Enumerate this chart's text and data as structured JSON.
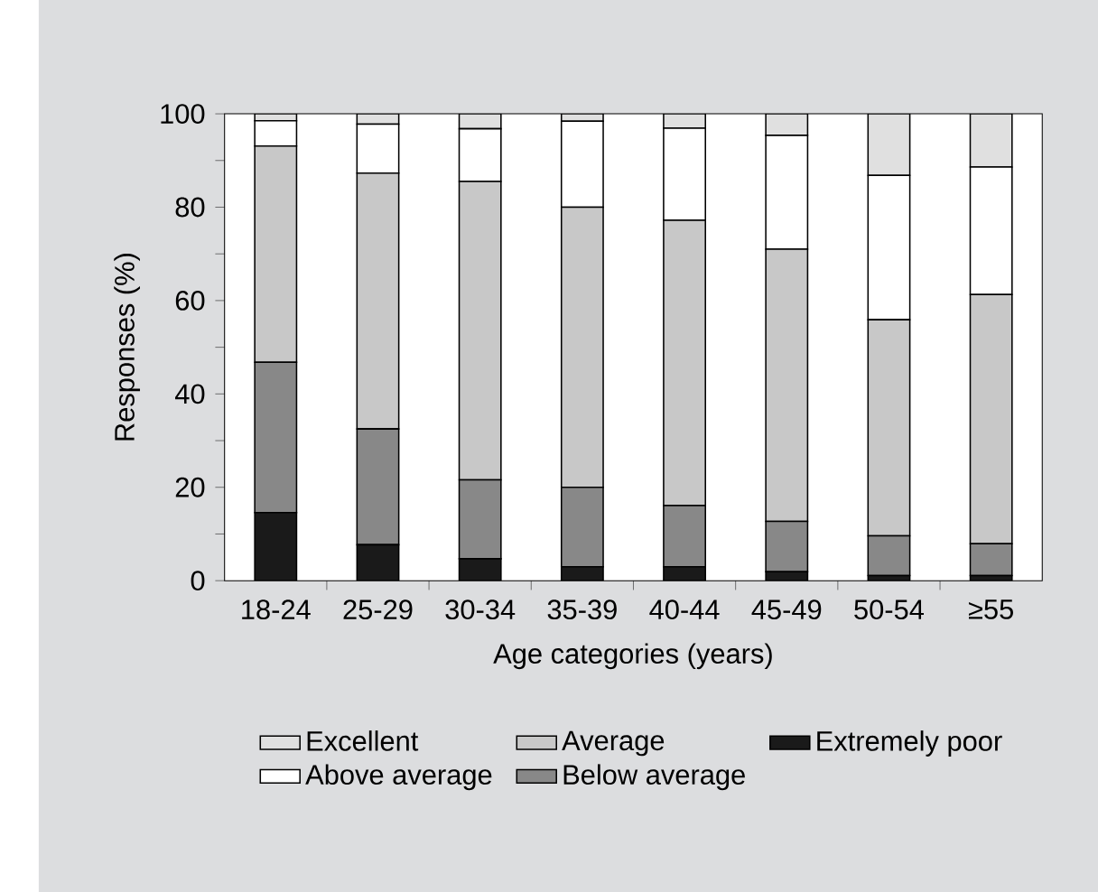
{
  "chart_data": {
    "type": "bar",
    "stacked": true,
    "xlabel": "Age categories (years)",
    "ylabel": "Responses (%)",
    "categories": [
      "18-24",
      "25-29",
      "30-34",
      "35-39",
      "40-44",
      "45-49",
      "50-54",
      "≥55"
    ],
    "series": [
      {
        "name": "Extremely poor",
        "color": "#1a1a1a",
        "values": [
          14.6,
          7.7,
          4.7,
          3.0,
          3.0,
          1.9,
          1.1,
          1.1
        ]
      },
      {
        "name": "Below average",
        "color": "#888888",
        "values": [
          32.2,
          24.8,
          16.9,
          17.0,
          13.1,
          10.8,
          8.5,
          6.8
        ]
      },
      {
        "name": "Average",
        "color": "#c8c8c8",
        "values": [
          46.3,
          54.8,
          63.9,
          60.0,
          61.1,
          58.3,
          46.3,
          53.4
        ]
      },
      {
        "name": "Above average",
        "color": "#ffffff",
        "values": [
          5.4,
          10.5,
          11.3,
          18.4,
          19.7,
          24.4,
          30.9,
          27.3
        ]
      },
      {
        "name": "Excellent",
        "color": "#e0e0e0",
        "values": [
          1.5,
          2.2,
          3.2,
          1.6,
          3.1,
          4.6,
          13.2,
          11.4
        ]
      }
    ],
    "ylim": [
      0,
      100
    ],
    "yticks": [
      0,
      20,
      40,
      60,
      80,
      100
    ],
    "legend": "bottom"
  }
}
